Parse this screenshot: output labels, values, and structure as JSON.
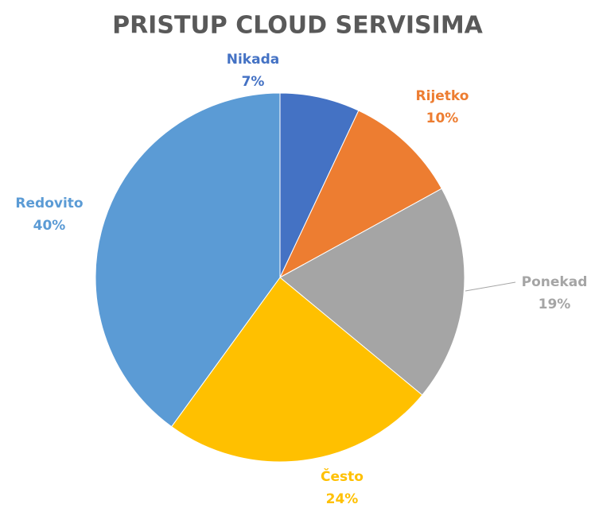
{
  "chart_data": {
    "type": "pie",
    "title": "PRISTUP CLOUD SERVISIMA",
    "categories": [
      "Nikada",
      "Rijetko",
      "Ponekad",
      "Često",
      "Redovito"
    ],
    "values": [
      7,
      10,
      19,
      24,
      40
    ],
    "value_labels": [
      "7%",
      "10%",
      "19%",
      "24%",
      "40%"
    ],
    "colors": [
      "#4472c4",
      "#ed7d31",
      "#a5a5a5",
      "#ffc000",
      "#5b9bd5"
    ]
  }
}
